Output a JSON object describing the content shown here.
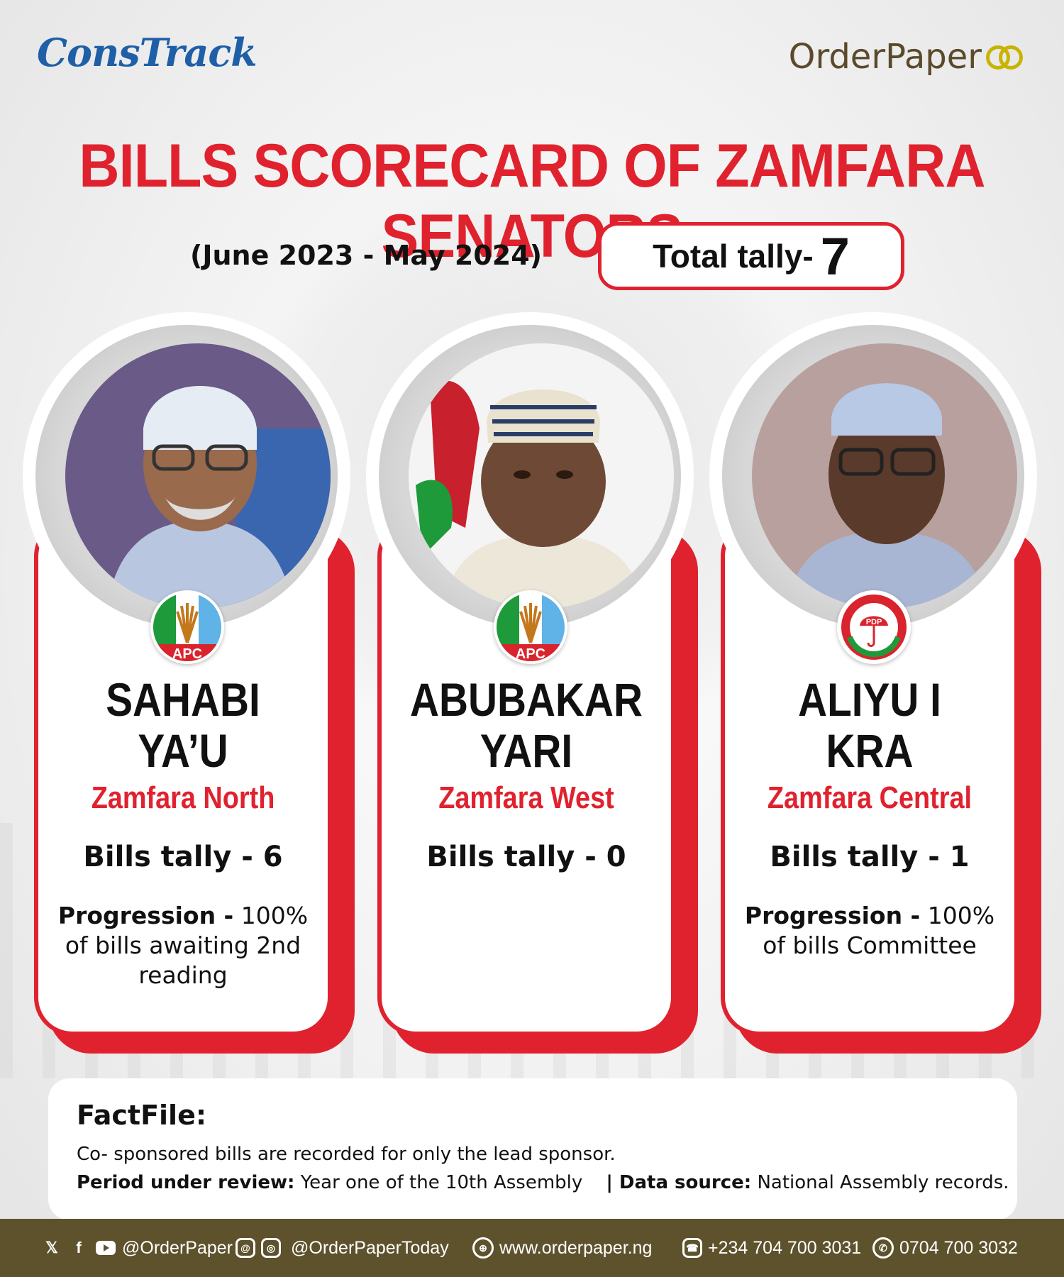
{
  "header": {
    "left_logo": "ConsTrack",
    "right_logo": "OrderPaper",
    "title": "BILLS SCORECARD OF ZAMFARA SENATORS",
    "period": "(June 2023 - May 2024)",
    "total_label": "Total tally-",
    "total_value": "7"
  },
  "senators": [
    {
      "name_line1": "SAHABI",
      "name_line2": "YA’U",
      "district": "Zamfara North",
      "party": "APC",
      "tally": "Bills tally - 6",
      "progression_label": "Progression -",
      "progression_text": "100% of bills awaiting 2nd reading"
    },
    {
      "name_line1": "ABUBAKAR",
      "name_line2": "YARI",
      "district": "Zamfara West",
      "party": "APC",
      "tally": "Bills tally - 0",
      "progression_label": "",
      "progression_text": ""
    },
    {
      "name_line1": "ALIYU I",
      "name_line2": "KRA",
      "district": "Zamfara Central",
      "party": "PDP",
      "tally": "Bills tally - 1",
      "progression_label": "Progression -",
      "progression_text": "100% of bills Committee"
    }
  ],
  "factfile": {
    "heading": "FactFile:",
    "note": "Co- sponsored bills are recorded for only the lead sponsor.",
    "period_label": "Period under review:",
    "period_value": "Year one of the 10th Assembly",
    "source_label": "| Data source:",
    "source_value": "National Assembly records."
  },
  "footer": {
    "social1": "@OrderPaper",
    "social2": "@OrderPaperToday",
    "website": "www.orderpaper.ng",
    "phone": "+234 704 700 3031",
    "whatsapp": "0704 700 3032"
  },
  "colors": {
    "accent": "#e0222e",
    "footer_bg": "#5e522d",
    "consTrack_blue": "#1f5fa8"
  },
  "icons": [
    "x-icon",
    "facebook-icon",
    "youtube-icon",
    "threads-icon",
    "instagram-icon",
    "globe-icon",
    "phone-icon",
    "whatsapp-icon"
  ]
}
